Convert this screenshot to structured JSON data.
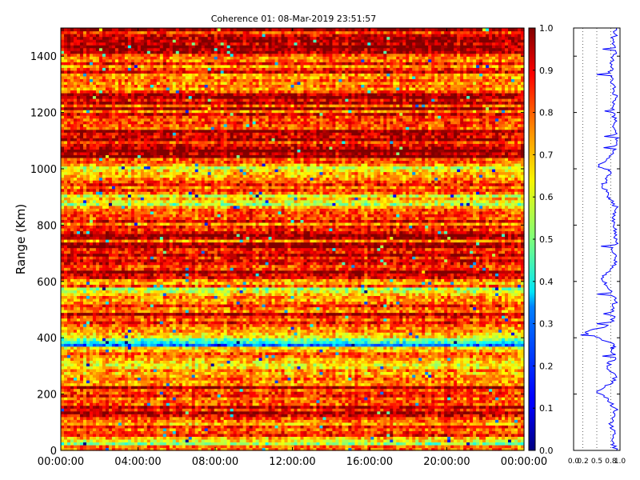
{
  "chart_data": [
    {
      "type": "heatmap",
      "title": "Coherence 01: 08-Mar-2019 23:51:57",
      "xlabel": "",
      "ylabel": "Range (Km)",
      "x_ticks": [
        "00:00:00",
        "04:00:00",
        "08:00:00",
        "12:00:00",
        "16:00:00",
        "20:00:00",
        "00:00:00"
      ],
      "y_ticks": [
        0,
        200,
        400,
        600,
        800,
        1000,
        1200,
        1400
      ],
      "xlim_hours": [
        0,
        24
      ],
      "ylim": [
        0,
        1500
      ],
      "colorscale": "jet",
      "zlim": [
        0,
        1
      ],
      "colorbar_ticks": [
        "0.0",
        "0.1",
        "0.2",
        "0.3",
        "0.4",
        "0.5",
        "0.6",
        "0.7",
        "0.8",
        "0.9",
        "1.0"
      ],
      "row_mean_profile": {
        "range_km": [
          0,
          30,
          60,
          90,
          120,
          150,
          180,
          210,
          240,
          270,
          300,
          330,
          360,
          380,
          400,
          420,
          450,
          480,
          510,
          540,
          570,
          600,
          630,
          660,
          690,
          720,
          750,
          780,
          810,
          840,
          870,
          900,
          930,
          960,
          990,
          1000,
          1020,
          1050,
          1080,
          1110,
          1140,
          1170,
          1200,
          1230,
          1260,
          1290,
          1320,
          1350,
          1380,
          1410,
          1440,
          1470,
          1500
        ],
        "coherence": [
          0.8,
          0.55,
          0.85,
          0.72,
          0.88,
          0.9,
          0.65,
          0.9,
          0.82,
          0.78,
          0.5,
          0.85,
          0.7,
          0.25,
          0.6,
          0.82,
          0.9,
          0.87,
          0.85,
          0.66,
          0.62,
          0.83,
          0.9,
          0.91,
          0.88,
          0.87,
          0.85,
          0.92,
          0.8,
          0.75,
          0.62,
          0.6,
          0.75,
          0.82,
          0.78,
          0.55,
          0.8,
          0.92,
          0.94,
          0.9,
          0.87,
          0.89,
          0.85,
          0.9,
          0.87,
          0.8,
          0.78,
          0.83,
          0.85,
          0.86,
          0.9,
          0.88,
          0.92
        ]
      }
    },
    {
      "type": "line",
      "title": "",
      "xlabel": "",
      "ylabel": "",
      "x_ticks": [
        "0.0",
        "0.2",
        "0.5",
        "0.8",
        "1.0"
      ],
      "xlim": [
        0,
        1
      ],
      "ylim": [
        0,
        1500
      ],
      "grid": "vertical dotted",
      "line_color": "#0000ff",
      "series": [
        {
          "x": [
            0.92,
            0.85,
            0.9,
            0.8,
            0.88,
            0.9,
            0.75,
            0.5,
            0.85,
            0.9,
            0.72,
            0.9,
            0.82,
            0.88,
            0.55,
            0.25,
            0.7,
            0.88,
            0.82,
            0.9,
            0.8,
            0.66,
            0.62,
            0.85,
            0.9,
            0.83,
            0.91,
            0.88,
            0.87,
            0.85,
            0.92,
            0.8,
            0.75,
            0.62,
            0.72,
            0.8,
            0.55,
            0.78,
            0.92,
            0.94,
            0.9,
            0.87,
            0.89,
            0.85,
            0.9,
            0.87,
            0.8,
            0.78,
            0.83,
            0.85,
            0.9,
            0.86,
            0.92
          ],
          "y": [
            0,
            30,
            60,
            90,
            120,
            150,
            180,
            210,
            240,
            270,
            300,
            330,
            360,
            375,
            400,
            420,
            440,
            470,
            500,
            530,
            560,
            590,
            620,
            650,
            680,
            710,
            740,
            770,
            800,
            830,
            860,
            890,
            910,
            940,
            960,
            990,
            1010,
            1040,
            1070,
            1100,
            1130,
            1160,
            1190,
            1220,
            1250,
            1280,
            1310,
            1340,
            1370,
            1400,
            1430,
            1460,
            1500
          ]
        }
      ]
    }
  ]
}
